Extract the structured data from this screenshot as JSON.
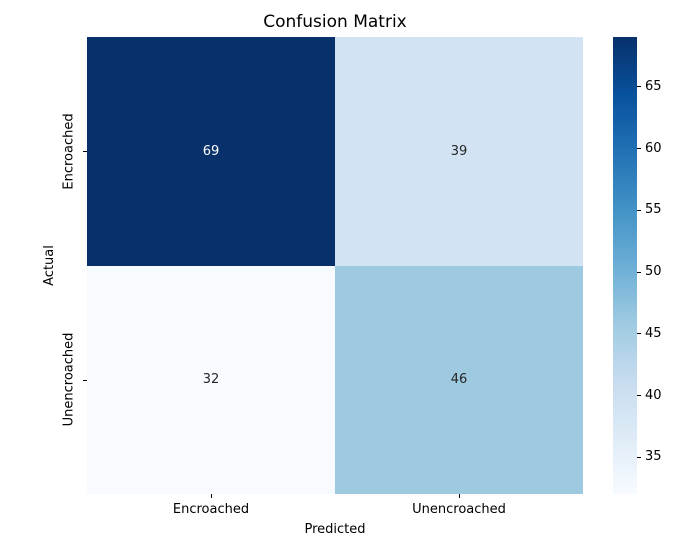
{
  "chart_data": {
    "type": "heatmap",
    "title": "Confusion Matrix",
    "xlabel": "Predicted",
    "ylabel": "Actual",
    "x_categories": [
      "Encroached",
      "Unencroached"
    ],
    "y_categories": [
      "Encroached",
      "Unencroached"
    ],
    "values": [
      [
        69,
        39
      ],
      [
        32,
        46
      ]
    ],
    "vmin": 32,
    "vmax": 69,
    "colormap": "Blues",
    "colormap_stops": [
      "#f7fbff",
      "#deebf7",
      "#c6dbef",
      "#9ecae1",
      "#6baed6",
      "#4292c6",
      "#2171b5",
      "#08519c",
      "#08306b"
    ],
    "cell_colors": [
      [
        "#08306b",
        "#d2e3f3"
      ],
      [
        "#f7fbff",
        "#9ecae1"
      ]
    ],
    "cell_text_colors": [
      [
        "#ffffff",
        "#262626"
      ],
      [
        "#262626",
        "#262626"
      ]
    ],
    "colorbar_ticks": [
      35,
      40,
      45,
      50,
      55,
      60,
      65
    ],
    "legend_position": "right",
    "grid": false
  }
}
